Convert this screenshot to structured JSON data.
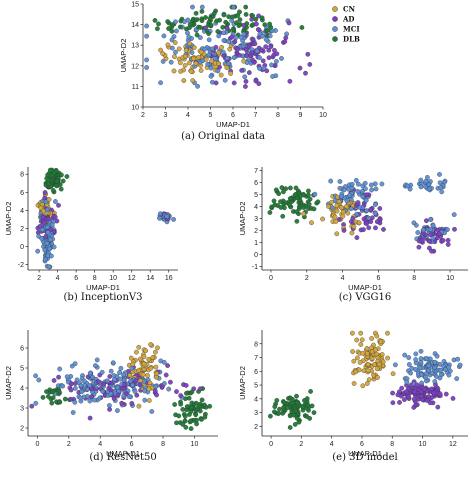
{
  "colors": {
    "CN": "#d4a53a",
    "AD": "#7a3fc4",
    "MCI": "#5b8fd6",
    "DLB": "#1e7a34"
  },
  "legend_items": [
    "CN",
    "AD",
    "MCI",
    "DLB"
  ],
  "chart_data": [
    {
      "type": "scatter",
      "caption": "(a) Original data",
      "xlabel": "UMAP-D1",
      "ylabel": "UMAP-D2",
      "xlim": [
        2,
        10
      ],
      "ylim": [
        10,
        15
      ],
      "xticks": [
        2,
        3,
        4,
        5,
        6,
        7,
        8,
        9,
        10
      ],
      "yticks": [
        10,
        11,
        12,
        13,
        14,
        15
      ],
      "legend": "right",
      "clusters": [
        {
          "class": "DLB",
          "cx": 5.4,
          "cy": 14.1,
          "rx": 2.4,
          "ry": 0.6,
          "n": 90
        },
        {
          "class": "CN",
          "cx": 4.5,
          "cy": 12.4,
          "rx": 1.8,
          "ry": 1.0,
          "n": 70
        },
        {
          "class": "AD",
          "cx": 6.8,
          "cy": 12.7,
          "rx": 1.8,
          "ry": 1.2,
          "n": 90
        },
        {
          "class": "MCI",
          "cx": 5.6,
          "cy": 12.8,
          "rx": 2.6,
          "ry": 1.4,
          "n": 140
        }
      ]
    },
    {
      "type": "scatter",
      "caption": "(b) InceptionV3",
      "xlabel": "UMAP-D1",
      "ylabel": "UMAP-D2",
      "xlim": [
        0.8,
        17
      ],
      "ylim": [
        -2.6,
        8.8
      ],
      "xticks": [
        2,
        4,
        6,
        8,
        10,
        12,
        14,
        16
      ],
      "yticks": [
        -2,
        0,
        2,
        4,
        6,
        8
      ],
      "clusters": [
        {
          "class": "DLB",
          "cx": 3.6,
          "cy": 7.4,
          "rx": 0.9,
          "ry": 0.9,
          "n": 70
        },
        {
          "class": "CN",
          "cx": 2.6,
          "cy": 4.0,
          "rx": 0.6,
          "ry": 1.6,
          "n": 40
        },
        {
          "class": "AD",
          "cx": 2.9,
          "cy": 2.8,
          "rx": 0.7,
          "ry": 2.0,
          "n": 50
        },
        {
          "class": "MCI",
          "cx": 2.8,
          "cy": 1.5,
          "rx": 0.7,
          "ry": 3.2,
          "n": 100
        },
        {
          "class": "MCI",
          "cx": 15.5,
          "cy": 3.3,
          "rx": 0.8,
          "ry": 0.4,
          "n": 20
        },
        {
          "class": "AD",
          "cx": 15.6,
          "cy": 3.5,
          "rx": 0.5,
          "ry": 0.3,
          "n": 8
        }
      ]
    },
    {
      "type": "scatter",
      "caption": "(c) VGG16",
      "xlabel": "UMAP-D1",
      "ylabel": "UMAP-D2",
      "xlim": [
        -0.5,
        11
      ],
      "ylim": [
        -1.3,
        7.3
      ],
      "xticks": [
        0,
        2,
        4,
        6,
        8,
        10
      ],
      "yticks": [
        -1,
        0,
        1,
        2,
        3,
        4,
        5,
        6,
        7
      ],
      "clusters": [
        {
          "class": "DLB",
          "cx": 1.4,
          "cy": 4.4,
          "rx": 1.2,
          "ry": 1.3,
          "n": 70
        },
        {
          "class": "CN",
          "cx": 3.8,
          "cy": 3.6,
          "rx": 1.3,
          "ry": 1.3,
          "n": 50
        },
        {
          "class": "MCI",
          "cx": 4.6,
          "cy": 4.9,
          "rx": 1.4,
          "ry": 1.4,
          "n": 70
        },
        {
          "class": "AD",
          "cx": 5.2,
          "cy": 3.4,
          "rx": 1.2,
          "ry": 1.7,
          "n": 50
        },
        {
          "class": "AD",
          "cx": 9.0,
          "cy": 1.5,
          "rx": 1.0,
          "ry": 1.1,
          "n": 40
        },
        {
          "class": "MCI",
          "cx": 9.0,
          "cy": 2.0,
          "rx": 0.9,
          "ry": 1.0,
          "n": 30
        },
        {
          "class": "MCI",
          "cx": 8.9,
          "cy": 5.8,
          "rx": 1.1,
          "ry": 0.5,
          "n": 30
        }
      ]
    },
    {
      "type": "scatter",
      "caption": "(d) ResNet50",
      "xlabel": "UMAP-D1",
      "ylabel": "UMAP-D2",
      "xlim": [
        -0.6,
        11.5
      ],
      "ylim": [
        1.6,
        6.9
      ],
      "xticks": [
        0,
        2,
        4,
        6,
        8,
        10
      ],
      "yticks": [
        2,
        3,
        4,
        5,
        6
      ],
      "clusters": [
        {
          "class": "MCI",
          "cx": 4.5,
          "cy": 4.1,
          "rx": 3.6,
          "ry": 0.9,
          "n": 150
        },
        {
          "class": "AD",
          "cx": 5.0,
          "cy": 4.0,
          "rx": 3.4,
          "ry": 0.9,
          "n": 90
        },
        {
          "class": "CN",
          "cx": 6.8,
          "cy": 5.0,
          "rx": 1.0,
          "ry": 1.2,
          "n": 60
        },
        {
          "class": "DLB",
          "cx": 9.8,
          "cy": 2.9,
          "rx": 0.9,
          "ry": 0.8,
          "n": 60
        },
        {
          "class": "DLB",
          "cx": 1.1,
          "cy": 3.6,
          "rx": 0.7,
          "ry": 0.5,
          "n": 20
        }
      ]
    },
    {
      "type": "scatter",
      "caption": "(e) 3D model",
      "xlabel": "UMAP-D1",
      "ylabel": "UMAP-D2",
      "xlim": [
        -0.6,
        13
      ],
      "ylim": [
        1.3,
        9
      ],
      "xticks": [
        0,
        2,
        4,
        6,
        8,
        10,
        12
      ],
      "yticks": [
        2,
        3,
        4,
        5,
        6,
        7,
        8
      ],
      "clusters": [
        {
          "class": "DLB",
          "cx": 1.5,
          "cy": 3.3,
          "rx": 1.1,
          "ry": 0.9,
          "n": 80
        },
        {
          "class": "CN",
          "cx": 6.6,
          "cy": 6.8,
          "rx": 1.1,
          "ry": 1.6,
          "n": 90
        },
        {
          "class": "MCI",
          "cx": 10.3,
          "cy": 6.3,
          "rx": 2.0,
          "ry": 0.9,
          "n": 90
        },
        {
          "class": "AD",
          "cx": 10.0,
          "cy": 4.4,
          "rx": 1.6,
          "ry": 0.7,
          "n": 110
        }
      ]
    }
  ]
}
